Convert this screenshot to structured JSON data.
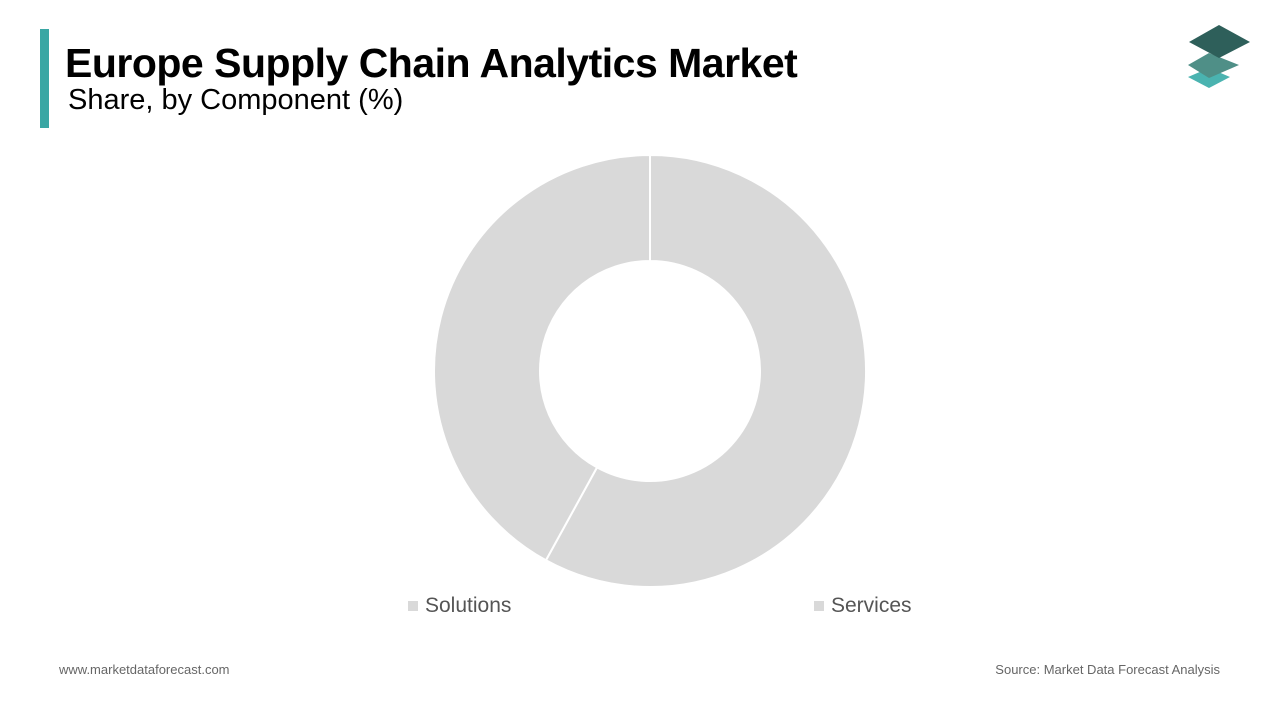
{
  "colors": {
    "accent": "#3aa7a4",
    "slice_fill": "#d9d9d9",
    "separator": "#ffffff",
    "logo_dark": "#2e5f5a",
    "logo_mid": "#4f8f87",
    "logo_light": "#4ab3b0"
  },
  "header": {
    "title": "Europe Supply Chain Analytics Market",
    "subtitle": "Share, by Component (%)"
  },
  "logo": {
    "icon": "stacked-layers-icon"
  },
  "chart_data": {
    "type": "pie",
    "variant": "donut",
    "title": "Europe Supply Chain Analytics Market",
    "subtitle": "Share, by Component (%)",
    "categories": [
      "Solutions",
      "Services"
    ],
    "values": [
      58,
      42
    ],
    "data_labels_shown": false,
    "start_angle": "12 o'clock, clockwise",
    "legend_position": "bottom"
  },
  "legend": {
    "items": [
      {
        "label": "Solutions"
      },
      {
        "label": "Services"
      }
    ]
  },
  "footer": {
    "website": "www.marketdataforecast.com",
    "source": "Source: Market Data Forecast Analysis"
  }
}
